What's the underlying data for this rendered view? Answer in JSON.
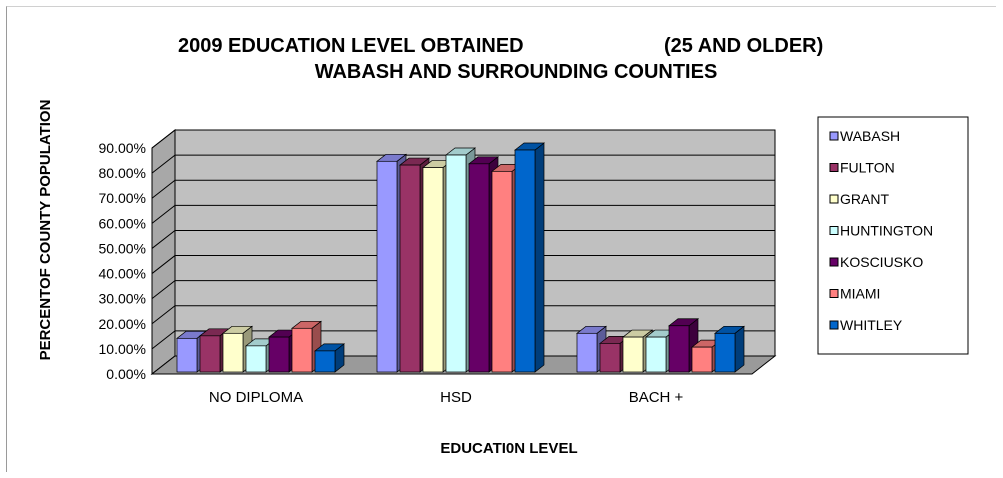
{
  "chart_data": {
    "type": "bar",
    "title_line1": "2009 EDUCATION LEVEL OBTAINED",
    "title_line1b": "(25 AND OLDER)",
    "title_line2": "WABASH AND SURROUNDING COUNTIES",
    "xlabel": "EDUCATI0N LEVEL",
    "ylabel": "PERCENTOF COUNTY POPULATION",
    "ylim": [
      0,
      90
    ],
    "yticks": [
      "0.00%",
      "10.00%",
      "20.00%",
      "30.00%",
      "40.00%",
      "50.00%",
      "60.00%",
      "70.00%",
      "80.00%",
      "90.00%"
    ],
    "categories": [
      "NO DIPLOMA",
      "HSD",
      "BACH +"
    ],
    "legend_position": "right",
    "grid": true,
    "series": [
      {
        "name": "WABASH",
        "color": "#9999ff",
        "values": [
          15.0,
          85.5,
          17.0
        ]
      },
      {
        "name": "FULTON",
        "color": "#993366",
        "values": [
          16.0,
          84.0,
          13.0
        ]
      },
      {
        "name": "GRANT",
        "color": "#ffffcc",
        "values": [
          17.0,
          83.0,
          15.5
        ]
      },
      {
        "name": "HUNTINGTON",
        "color": "#ccffff",
        "values": [
          12.0,
          88.0,
          15.5
        ]
      },
      {
        "name": "KOSCIUSKO",
        "color": "#660066",
        "values": [
          15.5,
          84.5,
          20.0
        ]
      },
      {
        "name": "MIAMI",
        "color": "#ff8080",
        "values": [
          19.0,
          81.5,
          11.5
        ]
      },
      {
        "name": "WHITLEY",
        "color": "#0066cc",
        "values": [
          10.0,
          90.0,
          17.0
        ]
      }
    ]
  }
}
